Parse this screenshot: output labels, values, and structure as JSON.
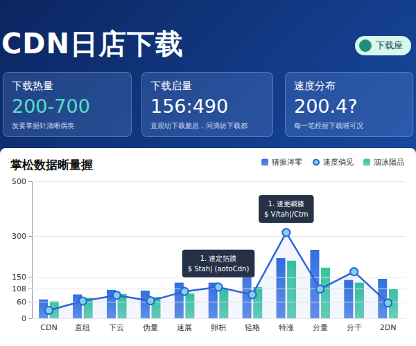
{
  "header": {
    "title": "CDN日店下载",
    "button": "下载座"
  },
  "cards": [
    {
      "title": "下载热量",
      "value": "200-700",
      "subtitle": "发要掌据针清晰偶喪"
    },
    {
      "title": "下载启量",
      "value": "156:490",
      "subtitle": "直观幼下载脆息，同滴纺下载都"
    },
    {
      "title": "速度分布",
      "value": "200.4?",
      "subtitle": "每一笔桎据下载哺可况"
    }
  ],
  "chart_data": {
    "type": "bar",
    "title": "掌松数据晰量握",
    "categories": [
      "CDN",
      "直纽",
      "下云",
      "伪量",
      "速展",
      "卵枳",
      "轻格",
      "特涨",
      "分量",
      "分干",
      "2DN"
    ],
    "series": [
      {
        "name": "猜振涔零",
        "type": "bar",
        "color": "#2f6fe0",
        "values": [
          69,
          87,
          104,
          101,
          130,
          130,
          220,
          220,
          250,
          140,
          144
        ]
      },
      {
        "name": "速度倘见",
        "type": "line",
        "color": "#2f63d6",
        "marker": "circle",
        "values": [
          29,
          63,
          84,
          64,
          98,
          114,
          86,
          313,
          107,
          170,
          56
        ]
      },
      {
        "name": "泅泳陽品",
        "type": "bar",
        "color": "#35c4a0",
        "values": [
          62,
          75,
          89,
          78,
          90,
          106,
          114,
          210,
          185,
          130,
          108
        ]
      }
    ],
    "ylim": [
      0,
      500
    ],
    "yticks": [
      0,
      60,
      108,
      150,
      300,
      500
    ],
    "grid": true,
    "legend": "top-right",
    "annotations": [
      {
        "category": "卵枳",
        "series": "速度倘见",
        "lines": [
          "1. 速定箔膜",
          "$ Stah| (aotoCdn)"
        ]
      },
      {
        "category": "特涨",
        "series": "速度倘见",
        "lines": [
          "1. 速更瞬膝",
          "$ V/tah|/Ctm"
        ]
      }
    ]
  }
}
